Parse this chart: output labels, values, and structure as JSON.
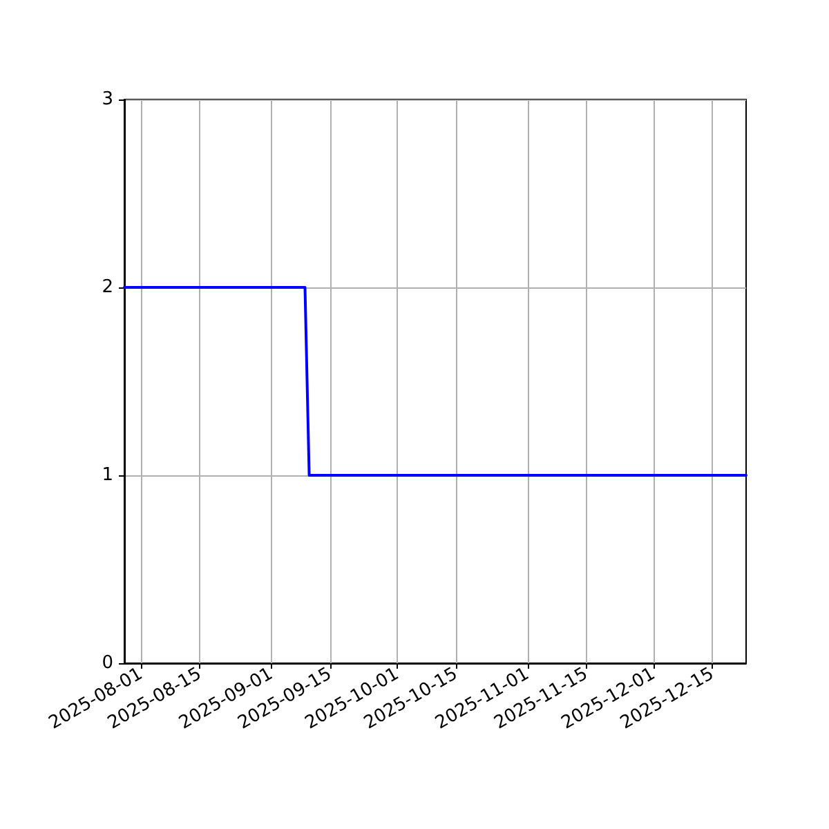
{
  "chart_data": {
    "type": "line",
    "x": [
      "2025-07-28",
      "2025-09-09",
      "2025-09-10",
      "2025-12-23"
    ],
    "series": [
      {
        "color": "#0000ff",
        "values": [
          2,
          2,
          1,
          1
        ]
      }
    ],
    "xlim": [
      "2025-07-28",
      "2025-12-23"
    ],
    "xticks": [
      "2025-08-01",
      "2025-08-15",
      "2025-09-01",
      "2025-09-15",
      "2025-10-01",
      "2025-10-15",
      "2025-11-01",
      "2025-11-15",
      "2025-12-01",
      "2025-12-15"
    ],
    "ylim": [
      0,
      3
    ],
    "yticks": [
      0,
      1,
      2,
      3
    ],
    "grid": true,
    "marker": "none",
    "line_style": "solid"
  }
}
